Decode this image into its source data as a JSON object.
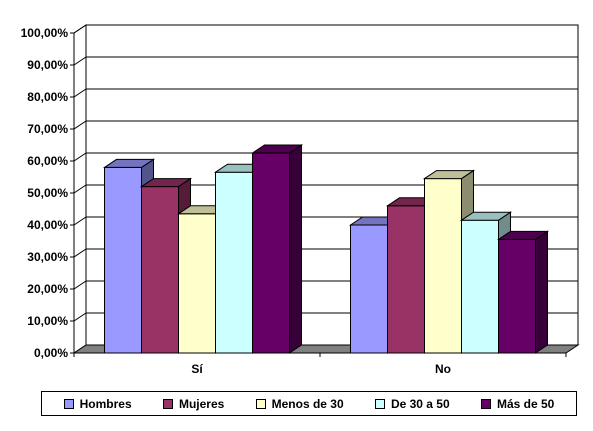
{
  "chart_data": {
    "type": "bar",
    "categories": [
      "Sí",
      "No"
    ],
    "series": [
      {
        "name": "Hombres",
        "values": [
          58.0,
          40.0
        ],
        "color": "#9999FF"
      },
      {
        "name": "Mujeres",
        "values": [
          52.0,
          46.0
        ],
        "color": "#993366"
      },
      {
        "name": "Menos de 30",
        "values": [
          43.5,
          54.5
        ],
        "color": "#FFFFCC"
      },
      {
        "name": "De 30 a 50",
        "values": [
          56.5,
          41.5
        ],
        "color": "#CCFFFF"
      },
      {
        "name": "Más de 50",
        "values": [
          62.5,
          35.5
        ],
        "color": "#660066"
      }
    ],
    "y_ticks": [
      "0,00%",
      "10,00%",
      "20,00%",
      "30,00%",
      "40,00%",
      "50,00%",
      "60,00%",
      "70,00%",
      "80,00%",
      "90,00%",
      "100,00%"
    ],
    "ylim": [
      0,
      100
    ],
    "style": "3d-clustered-column",
    "grid": true,
    "legend_position": "bottom"
  }
}
